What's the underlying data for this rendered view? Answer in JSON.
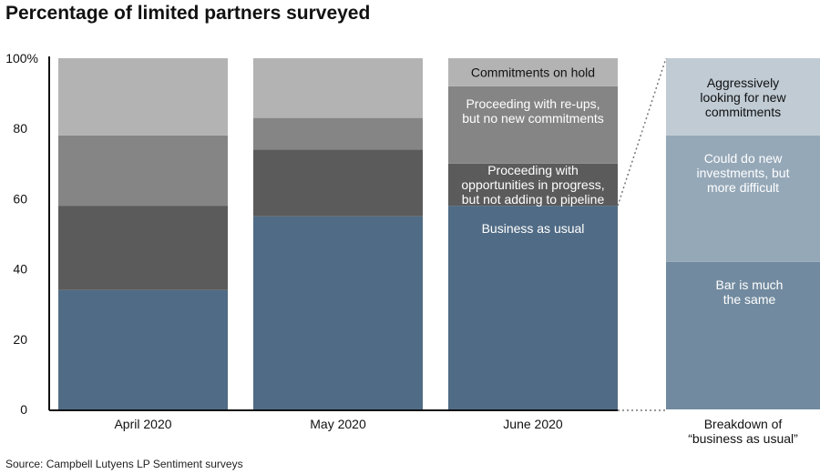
{
  "chart_data": {
    "type": "bar",
    "stacked": true,
    "title": "Percentage of limited partners surveyed",
    "source": "Source: Campbell Lutyens LP Sentiment surveys",
    "ylim": [
      0,
      100
    ],
    "yticks": [
      "0",
      "20",
      "40",
      "60",
      "80",
      "100%"
    ],
    "categories": [
      "April 2020",
      "May 2020",
      "June 2020"
    ],
    "series": [
      {
        "name": "Business as usual",
        "color": "#506b85",
        "values": [
          34,
          55,
          58
        ],
        "label_color": "#ffffff"
      },
      {
        "name": "Proceeding with opportunities in progress, but not adding to pipeline",
        "label_lines": [
          "Proceeding with",
          "opportunities in progress,",
          "but not adding to pipeline"
        ],
        "color": "#5b5b5b",
        "values": [
          24,
          19,
          12
        ],
        "label_color": "#ffffff"
      },
      {
        "name": "Proceeding with re-ups, but no new commitments",
        "label_lines": [
          "Proceeding with re-ups,",
          "but no new commitments"
        ],
        "color": "#858585",
        "values": [
          20,
          9,
          22
        ],
        "label_color": "#ffffff"
      },
      {
        "name": "Commitments on hold",
        "label_lines": [
          "Commitments on hold"
        ],
        "color": "#b3b3b3",
        "values": [
          22,
          17,
          8
        ],
        "label_color": "#111111"
      }
    ],
    "breakdown": {
      "category_lines": [
        "Breakdown of",
        "“business as usual”"
      ],
      "segments": [
        {
          "name": "Bar is much the same",
          "label_lines": [
            "Bar is much",
            "the same"
          ],
          "color": "#718a9f",
          "value": 42,
          "label_color": "#ffffff"
        },
        {
          "name": "Could do new investments, but more difficult",
          "label_lines": [
            "Could do new",
            "investments, but",
            "more difficult"
          ],
          "color": "#95a8b8",
          "value": 36,
          "label_color": "#ffffff"
        },
        {
          "name": "Aggressively looking for new commitments",
          "label_lines": [
            "Aggressively",
            "looking for new",
            "commitments"
          ],
          "color": "#c0cbd4",
          "value": 22,
          "label_color": "#111111"
        }
      ]
    },
    "grid": false,
    "legend": "none (labels inside June 2020 bar)"
  }
}
